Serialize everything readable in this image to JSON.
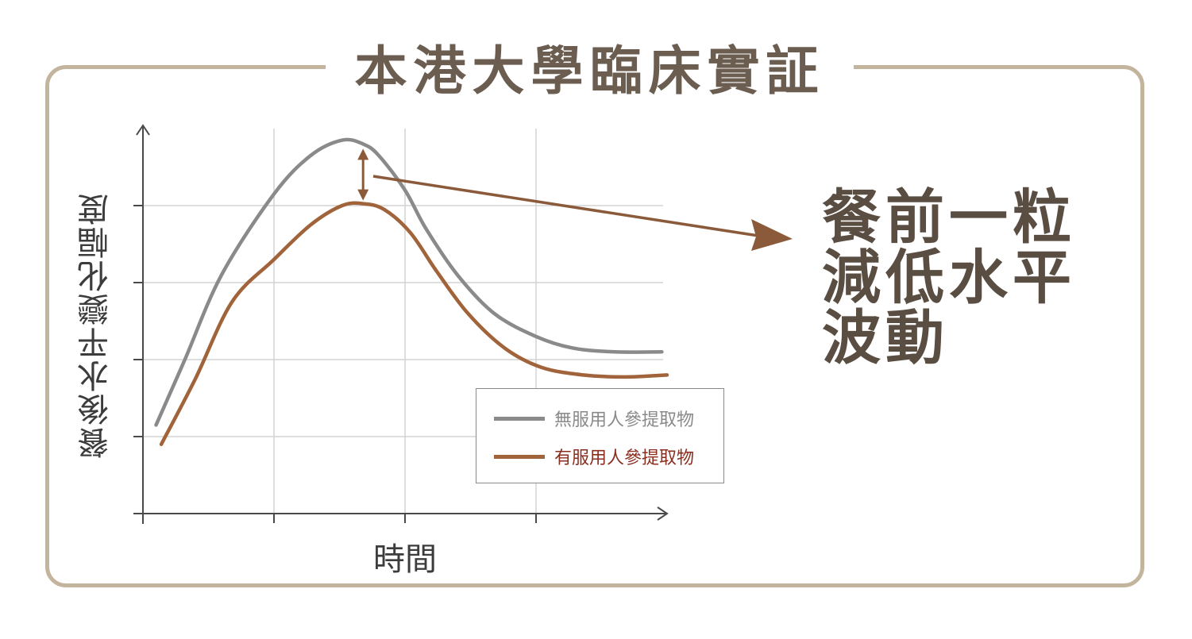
{
  "title": "本港大學臨床實証",
  "note_lines": [
    "餐前一粒",
    "減低水平",
    "波動"
  ],
  "chart_data": {
    "type": "line",
    "xlabel": "時間",
    "ylabel": "餐後水平變化幅度",
    "xlim": [
      0,
      100
    ],
    "ylim": [
      0,
      100
    ],
    "xticks": [
      25,
      50,
      75
    ],
    "yticks": [
      20,
      40,
      60,
      80
    ],
    "grid": true,
    "legend_position": "bottom-right",
    "series": [
      {
        "name": "無服用人參提取物",
        "color": "#8a8a8a",
        "x": [
          2.5,
          8,
          15,
          25,
          32,
          38,
          42,
          45,
          50,
          54,
          60,
          67,
          75,
          82,
          90,
          99
        ],
        "y": [
          23,
          40,
          62,
          83,
          93,
          97,
          96,
          93,
          84,
          74,
          62,
          52,
          46,
          43,
          42,
          42
        ]
      },
      {
        "name": "有服用人參提取物",
        "color": "#a0633a",
        "x": [
          3.5,
          10,
          17,
          25,
          32,
          38,
          42,
          46,
          51,
          56,
          62,
          69,
          76,
          84,
          92,
          100
        ],
        "y": [
          18,
          35,
          55,
          66,
          75,
          80,
          80.5,
          79,
          73,
          63,
          52,
          43,
          38,
          36,
          35.5,
          36
        ]
      }
    ],
    "annotation": {
      "type": "double-arrow",
      "x": 42,
      "y_from": 96,
      "y_to": 80.5,
      "color": "#8a5a3a"
    }
  },
  "colors": {
    "frame": "#c3b59d",
    "title": "#6b5d50",
    "note": "#5a4d42",
    "arrow": "#8a5a3a"
  }
}
